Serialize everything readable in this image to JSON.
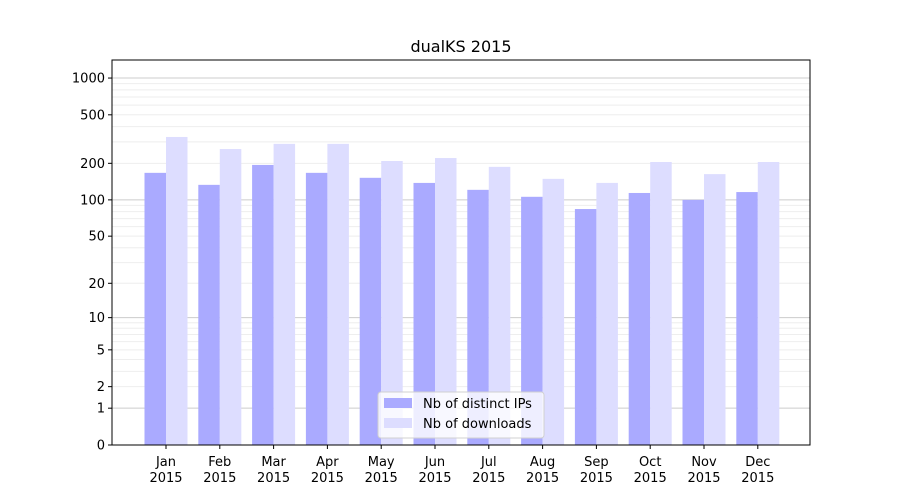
{
  "chart_data": {
    "type": "bar",
    "title": "dualKS 2015",
    "xlabel": "",
    "ylabel": "",
    "yscale": "symlog (log of 1+y)",
    "ylim": [
      0,
      1300
    ],
    "yticks": [
      0,
      1,
      2,
      5,
      10,
      20,
      50,
      100,
      200,
      500,
      1000
    ],
    "grid": true,
    "legend_position": "bottom-center",
    "categories": [
      "Jan\n2015",
      "Feb\n2015",
      "Mar\n2015",
      "Apr\n2015",
      "May\n2015",
      "Jun\n2015",
      "Jul\n2015",
      "Aug\n2015",
      "Sep\n2015",
      "Oct\n2015",
      "Nov\n2015",
      "Dec\n2015"
    ],
    "series": [
      {
        "name": "Nb of distinct IPs",
        "color": "#aaaaff",
        "values": [
          167,
          133,
          194,
          167,
          152,
          138,
          121,
          106,
          84,
          114,
          100,
          116
        ]
      },
      {
        "name": "Nb of downloads",
        "color": "#ddddff",
        "values": [
          329,
          262,
          289,
          289,
          209,
          221,
          187,
          149,
          138,
          205,
          163,
          205
        ]
      }
    ]
  }
}
